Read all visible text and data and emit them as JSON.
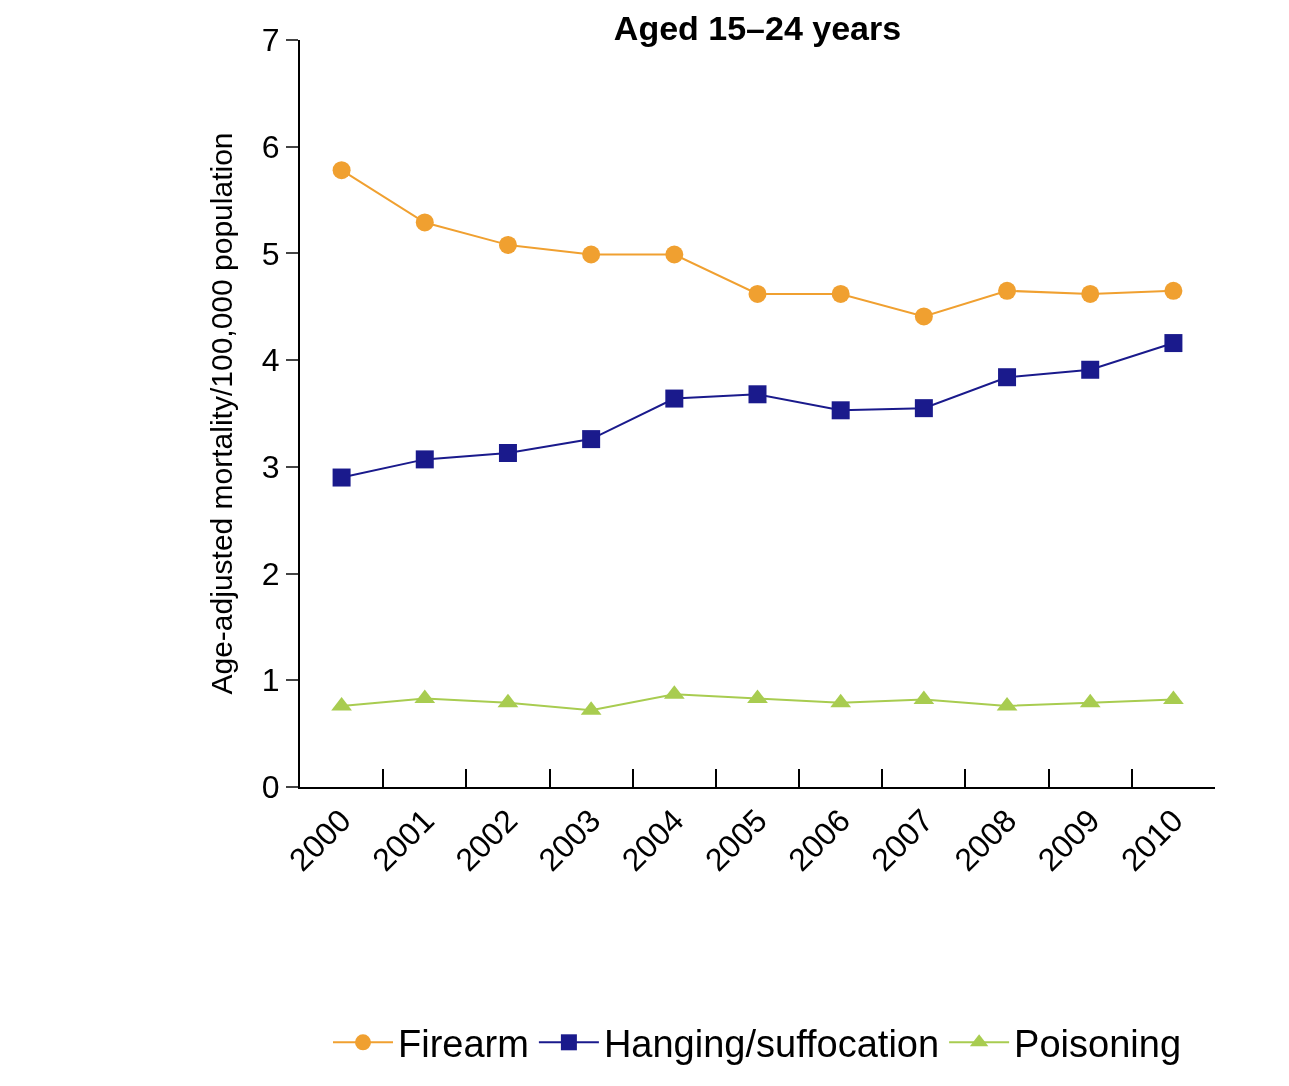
{
  "chart_data": {
    "type": "line",
    "title": "Aged 15–24 years",
    "ylabel": "Age-adjusted mortality/100,000 population",
    "categories": [
      "2000",
      "2001",
      "2002",
      "2003",
      "2004",
      "2005",
      "2006",
      "2007",
      "2008",
      "2009",
      "2010"
    ],
    "ylim": [
      0,
      7
    ],
    "yticks": [
      0,
      1,
      2,
      3,
      4,
      5,
      6,
      7
    ],
    "grid": false,
    "legend": "bottom",
    "series": [
      {
        "name": "Firearm",
        "color": "#f0a030",
        "marker": "circle",
        "values": [
          5.78,
          5.29,
          5.08,
          4.99,
          4.99,
          4.62,
          4.62,
          4.41,
          4.65,
          4.62,
          4.65
        ]
      },
      {
        "name": "Hanging/suffocation",
        "color": "#1a1a8c",
        "marker": "square",
        "values": [
          2.9,
          3.07,
          3.13,
          3.26,
          3.64,
          3.68,
          3.53,
          3.55,
          3.84,
          3.91,
          4.16
        ]
      },
      {
        "name": "Poisoning",
        "color": "#a8cc50",
        "marker": "triangle",
        "values": [
          0.76,
          0.83,
          0.79,
          0.72,
          0.87,
          0.83,
          0.79,
          0.82,
          0.76,
          0.79,
          0.82
        ]
      }
    ]
  }
}
